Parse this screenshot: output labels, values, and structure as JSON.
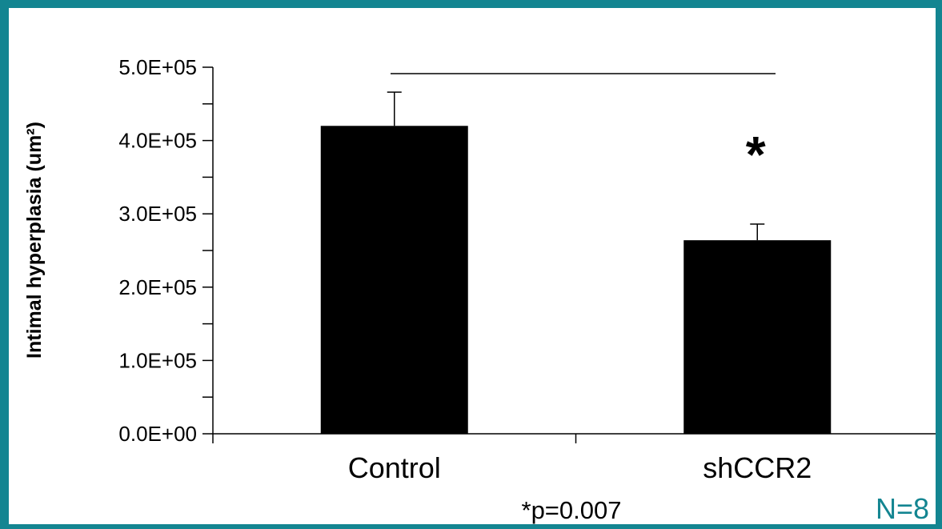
{
  "colors": {
    "frame": "#138591",
    "bar": "#000000",
    "n_label": "#138591"
  },
  "chart_data": {
    "type": "bar",
    "categories": [
      "Control",
      "shCCR2"
    ],
    "values": [
      420000,
      264000
    ],
    "error_plus": [
      46000,
      22000
    ],
    "ylabel": "Intimal hyperplasia (um²)",
    "ylim": [
      0,
      500000
    ],
    "major_ticks": [
      "0.0E+00",
      "1.0E+05",
      "2.0E+05",
      "3.0E+05",
      "4.0E+05",
      "5.0E+05"
    ],
    "minor_tick_step": 50000,
    "grid": false,
    "significance_marker": "*",
    "p_value_note": "*p=0.007",
    "n_note": "N=8"
  }
}
